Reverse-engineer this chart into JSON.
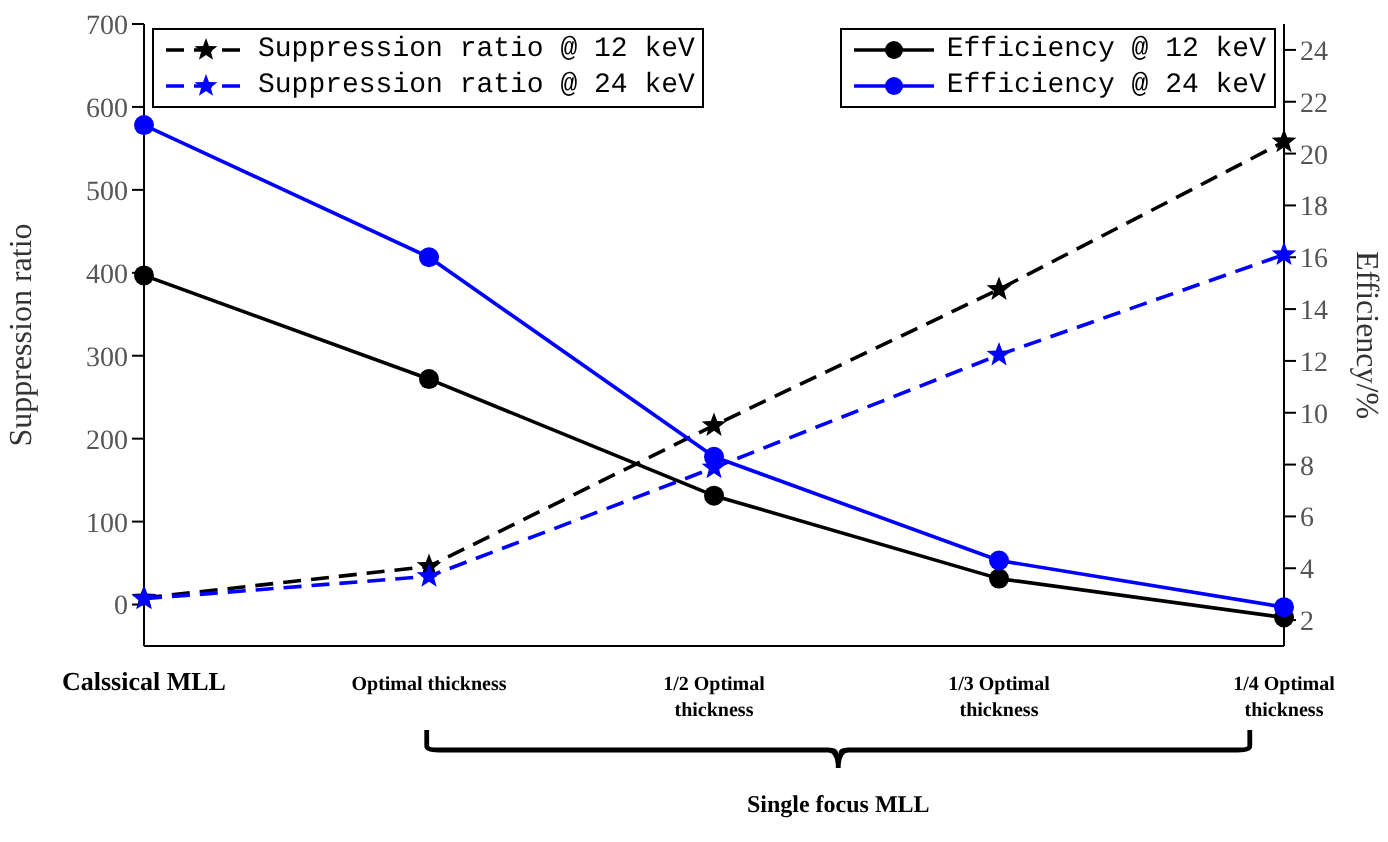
{
  "chart_data": {
    "type": "line",
    "categories": [
      "Calssical MLL",
      "Optimal thickness",
      "1/2 Optimal\nthickness",
      "1/3 Optimal\nthickness",
      "1/4 Optimal\nthickness"
    ],
    "ylabel": "Suppression ratio",
    "y2label": "Efficiency/%",
    "ylim": [
      -50,
      700
    ],
    "yticks": [
      0,
      100,
      200,
      300,
      400,
      500,
      600,
      700
    ],
    "y2lim": [
      1,
      25
    ],
    "y2ticks": [
      2,
      4,
      6,
      8,
      10,
      12,
      14,
      16,
      18,
      20,
      22,
      24
    ],
    "series": [
      {
        "name": "Suppression ratio @ 12 keV",
        "color": "#000000",
        "marker": "star",
        "line_style": "dashed",
        "values": [
          8,
          46,
          216,
          380,
          558
        ]
      },
      {
        "name": "Suppression ratio @ 24 keV",
        "color": "#0000ff",
        "marker": "star",
        "line_style": "dashed",
        "values": [
          7,
          34,
          165,
          301,
          422
        ]
      },
      {
        "name": "Efficiency @ 12 keV",
        "color": "#000000",
        "marker": "circle",
        "line_style": "solid",
        "axis": "y2",
        "values": [
          15.3,
          11.3,
          6.8,
          3.6,
          2.1
        ]
      },
      {
        "name": "Efficiency @ 24 keV",
        "color": "#0000ff",
        "marker": "circle",
        "line_style": "solid",
        "axis": "y2",
        "values": [
          21.1,
          16.0,
          8.3,
          4.3,
          2.5
        ]
      }
    ],
    "legend": "top",
    "annotations": [
      "Single focus MLL"
    ]
  }
}
